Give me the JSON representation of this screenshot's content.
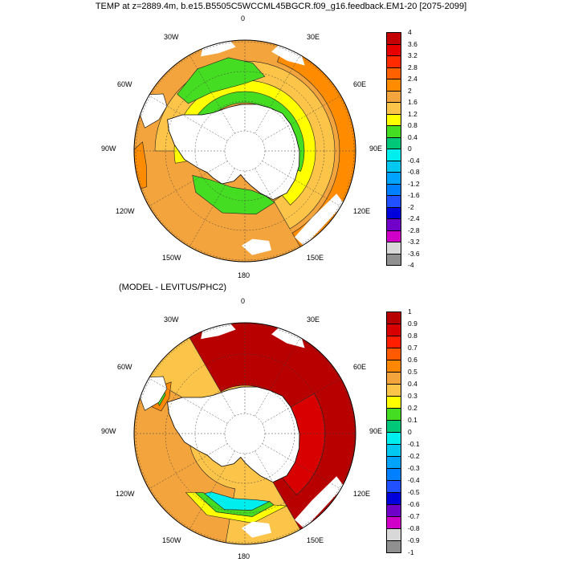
{
  "title": "TEMP at z=2889.4m, b.e15.B5505C5WCCML45BGCR.f09_g16.feedback.EM1-20 [2075-2099]",
  "panel2_title": "(MODEL - LEVITUS/PHC2)",
  "longitude_labels": [
    "0",
    "30E",
    "60E",
    "90E",
    "120E",
    "150E",
    "180",
    "150W",
    "120W",
    "90W",
    "60W",
    "30W"
  ],
  "colors": {
    "ocean_low": "#f4a43c",
    "ocean_mid": "#ffd84a",
    "ocean_high": "#c00000",
    "land": "#ffffff",
    "green": "#44dd22",
    "cyan": "#00eeee"
  },
  "chart_data": [
    {
      "type": "heatmap",
      "title": "TEMP at z=2889.4m, b.e15.B5505C5WCCML45BGCR.f09_g16.feedback.EM1-20 [2075-2099]",
      "projection": "south-polar stereographic",
      "variable": "Ocean temperature at 2889.4 m (deg C)",
      "colorbar_levels": [
        "4",
        "3.6",
        "3.2",
        "2.8",
        "2.4",
        "2",
        "1.6",
        "1.2",
        "0.8",
        "0.4",
        "0",
        "-0.4",
        "-0.8",
        "-1.2",
        "-1.6",
        "-2",
        "-2.4",
        "-2.8",
        "-3.2",
        "-3.6",
        "-4"
      ],
      "colorbar_colors": [
        "#c40000",
        "#e80000",
        "#ff2a00",
        "#ff6000",
        "#ff8c00",
        "#f4a43c",
        "#fcc448",
        "#ffff00",
        "#44dd22",
        "#00c878",
        "#00eeee",
        "#00c8f0",
        "#00a4ff",
        "#0080ff",
        "#2050ff",
        "#0000dd",
        "#7000c8",
        "#d000c8",
        "#d8d8d8",
        "#909090"
      ],
      "summary": "Warm (1.2 to 2.4) in the Pacific sector and north, cool 0.4-1.2 near Antarctica and in the Weddell Sea"
    },
    {
      "type": "heatmap",
      "title": "(MODEL - LEVITUS/PHC2)",
      "projection": "south-polar stereographic",
      "variable": "Temperature bias (deg C)",
      "colorbar_levels": [
        "1",
        "0.9",
        "0.8",
        "0.7",
        "0.6",
        "0.5",
        "0.4",
        "0.3",
        "0.2",
        "0.1",
        "0",
        "-0.1",
        "-0.2",
        "-0.3",
        "-0.4",
        "-0.5",
        "-0.6",
        "-0.7",
        "-0.8",
        "-0.9",
        "-1"
      ],
      "colorbar_colors": [
        "#b80000",
        "#d80000",
        "#ff1e00",
        "#ff5a00",
        "#ff8800",
        "#f4a43c",
        "#fcc448",
        "#ffff00",
        "#44dd22",
        "#00c878",
        "#00eeee",
        "#00c8f0",
        "#00a4ff",
        "#0080ff",
        "#2050ff",
        "#0000dd",
        "#7000c8",
        "#d000c8",
        "#d8d8d8",
        "#909090"
      ],
      "summary": "Strong positive bias (>1) in Atlantic and Indian sectors, weak positive in Pacific, negative bias near Ross Sea"
    }
  ]
}
